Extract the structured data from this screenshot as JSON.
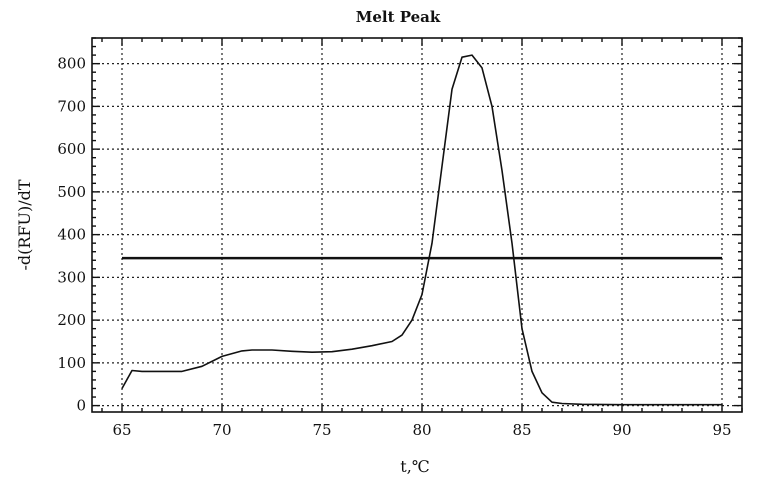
{
  "chart_data": {
    "type": "line",
    "title": "Melt Peak",
    "xlabel": "t,℃",
    "ylabel": "-d(RFU)/dT",
    "xlim": [
      63.5,
      96
    ],
    "ylim": [
      -15,
      860
    ],
    "x_ticks": [
      65,
      70,
      75,
      80,
      85,
      90,
      95
    ],
    "y_ticks": [
      0,
      100,
      200,
      300,
      400,
      500,
      600,
      700,
      800
    ],
    "grid": true,
    "series": [
      {
        "type": "line",
        "x": [
          65.0,
          65.5,
          66.0,
          67.0,
          68.0,
          69.0,
          70.0,
          71.0,
          71.5,
          72.5,
          73.5,
          74.5,
          75.5,
          76.5,
          77.5,
          78.5,
          79.0,
          79.5,
          80.0,
          80.5,
          81.0,
          81.5,
          82.0,
          82.5,
          83.0,
          83.5,
          84.0,
          84.5,
          85.0,
          85.5,
          86.0,
          86.5,
          87.0,
          88.0,
          90.0,
          92.0,
          95.0
        ],
        "y": [
          40,
          82,
          80,
          80,
          80,
          92,
          115,
          128,
          130,
          130,
          127,
          125,
          126,
          132,
          140,
          150,
          165,
          200,
          260,
          380,
          560,
          740,
          815,
          820,
          790,
          700,
          550,
          380,
          180,
          80,
          30,
          8,
          5,
          3,
          2,
          2,
          2
        ]
      },
      {
        "type": "threshold",
        "x": [
          65.0,
          95.0
        ],
        "y": [
          345,
          345
        ]
      }
    ]
  }
}
